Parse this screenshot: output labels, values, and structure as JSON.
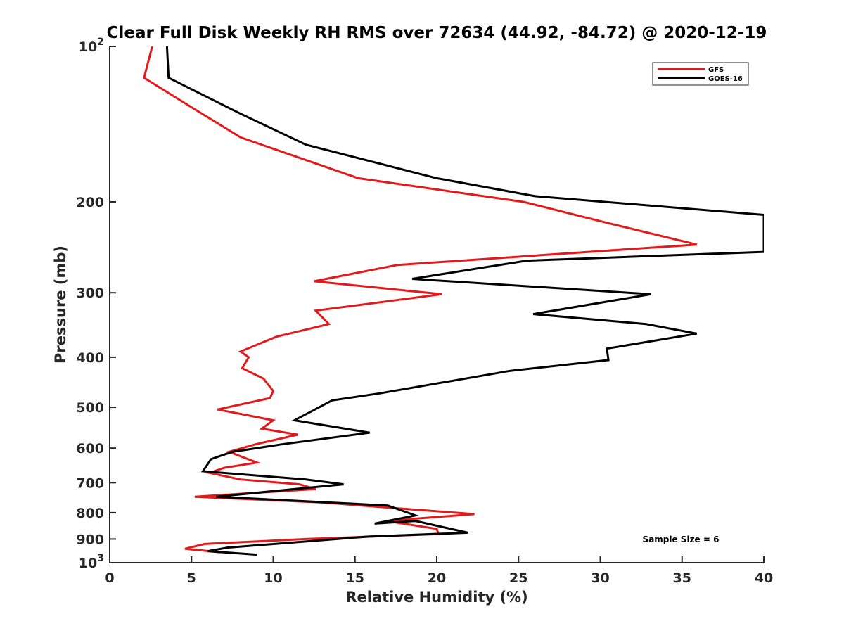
{
  "chart_data": {
    "type": "line",
    "title": "Clear Full Disk Weekly RH RMS over 72634 (44.92, -84.72) @ 2020-12-19",
    "xlabel": "Relative Humidity (%)",
    "ylabel": "Pressure (mb)",
    "xlim": [
      0,
      40
    ],
    "ylim": [
      100,
      1000
    ],
    "y_scale": "log",
    "y_reversed": true,
    "x_ticks": [
      0,
      5,
      10,
      15,
      20,
      25,
      30,
      35,
      40
    ],
    "x_tick_labels": [
      "0",
      "5",
      "10",
      "15",
      "20",
      "25",
      "30",
      "35",
      "40"
    ],
    "y_ticks": [
      100,
      200,
      300,
      400,
      500,
      600,
      700,
      800,
      900,
      1000
    ],
    "y_tick_labels": [
      {
        "base": "10",
        "exp": "2"
      },
      {
        "base": "200",
        "exp": ""
      },
      {
        "base": "300",
        "exp": ""
      },
      {
        "base": "400",
        "exp": ""
      },
      {
        "base": "500",
        "exp": ""
      },
      {
        "base": "600",
        "exp": ""
      },
      {
        "base": "700",
        "exp": ""
      },
      {
        "base": "800",
        "exp": ""
      },
      {
        "base": "900",
        "exp": ""
      },
      {
        "base": "10",
        "exp": "3"
      }
    ],
    "legend_position": "top-right",
    "annotation": "Sample Size = 6",
    "series": [
      {
        "name": "GFS",
        "color": "#e31a1c",
        "points": [
          [
            2.6,
            100
          ],
          [
            2.1,
            115
          ],
          [
            4.8,
            130
          ],
          [
            8.0,
            150
          ],
          [
            15.2,
            180
          ],
          [
            25.3,
            200
          ],
          [
            30.5,
            220
          ],
          [
            35.9,
            242
          ],
          [
            17.6,
            265
          ],
          [
            12.5,
            285
          ],
          [
            20.3,
            302
          ],
          [
            12.6,
            325
          ],
          [
            13.4,
            345
          ],
          [
            10.2,
            365
          ],
          [
            8.0,
            390
          ],
          [
            8.5,
            400
          ],
          [
            8.1,
            420
          ],
          [
            9.4,
            440
          ],
          [
            10.0,
            465
          ],
          [
            9.8,
            480
          ],
          [
            6.6,
            505
          ],
          [
            10.0,
            530
          ],
          [
            9.3,
            550
          ],
          [
            11.5,
            565
          ],
          [
            8.9,
            590
          ],
          [
            7.3,
            610
          ],
          [
            9.0,
            640
          ],
          [
            7.0,
            655
          ],
          [
            6.1,
            670
          ],
          [
            8.0,
            690
          ],
          [
            11.6,
            705
          ],
          [
            12.6,
            720
          ],
          [
            5.2,
            745
          ],
          [
            13.2,
            765
          ],
          [
            16.5,
            780
          ],
          [
            22.3,
            805
          ],
          [
            16.9,
            830
          ],
          [
            20.0,
            860
          ],
          [
            20.1,
            880
          ],
          [
            12.0,
            900
          ],
          [
            5.8,
            920
          ],
          [
            4.6,
            940
          ],
          [
            6.8,
            955
          ]
        ]
      },
      {
        "name": "GOES-16",
        "color": "#000000",
        "points": [
          [
            3.5,
            100
          ],
          [
            3.6,
            115
          ],
          [
            8.0,
            135
          ],
          [
            12.0,
            155
          ],
          [
            20.0,
            180
          ],
          [
            26.0,
            195
          ],
          [
            40.0,
            212
          ],
          [
            40.0,
            250
          ],
          [
            25.5,
            260
          ],
          [
            18.5,
            282
          ],
          [
            33.1,
            302
          ],
          [
            25.9,
            330
          ],
          [
            32.8,
            345
          ],
          [
            35.9,
            360
          ],
          [
            30.4,
            385
          ],
          [
            30.5,
            405
          ],
          [
            24.5,
            425
          ],
          [
            16.5,
            470
          ],
          [
            13.6,
            485
          ],
          [
            11.3,
            530
          ],
          [
            15.9,
            560
          ],
          [
            10.5,
            590
          ],
          [
            7.5,
            610
          ],
          [
            6.2,
            630
          ],
          [
            5.7,
            665
          ],
          [
            12.0,
            690
          ],
          [
            14.3,
            705
          ],
          [
            6.5,
            745
          ],
          [
            17.0,
            775
          ],
          [
            18.7,
            810
          ],
          [
            16.2,
            840
          ],
          [
            18.7,
            830
          ],
          [
            21.9,
            875
          ],
          [
            15.8,
            890
          ],
          [
            7.2,
            935
          ],
          [
            6.0,
            950
          ],
          [
            9.0,
            965
          ]
        ]
      }
    ]
  }
}
